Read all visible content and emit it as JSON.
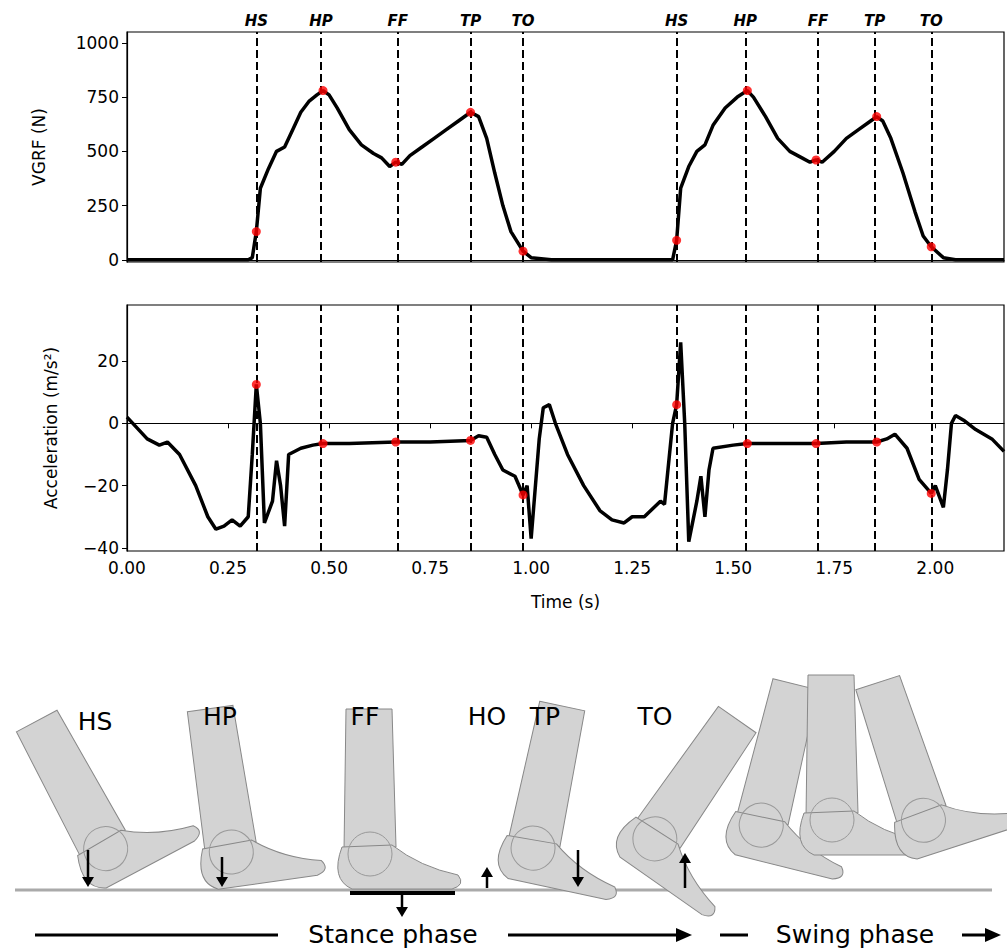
{
  "chart_data": [
    {
      "type": "line",
      "y_label": "VGRF (N)",
      "tick_labels": "y",
      "xlim": [
        0,
        2.17
      ],
      "ylim": [
        -10,
        1050
      ],
      "xticks": [
        {
          "value": 0,
          "label": "0.00"
        },
        {
          "value": 0.25,
          "label": "0.25"
        },
        {
          "value": 0.5,
          "label": "0.50"
        },
        {
          "value": 0.75,
          "label": "0.75"
        },
        {
          "value": 1,
          "label": "1.00"
        },
        {
          "value": 1.25,
          "label": "1.25"
        },
        {
          "value": 1.5,
          "label": "1.50"
        },
        {
          "value": 1.75,
          "label": "1.75"
        },
        {
          "value": 2,
          "label": "2.00"
        }
      ],
      "yticks": [
        0,
        250,
        500,
        750,
        1000
      ],
      "events": [
        {
          "label": "HS",
          "x": 0.32
        },
        {
          "label": "HP",
          "x": 0.485
        },
        {
          "label": "FF",
          "x": 0.665
        },
        {
          "label": "TP",
          "x": 0.85
        },
        {
          "label": "TO",
          "x": 0.98
        },
        {
          "label": "HS",
          "x": 1.36
        },
        {
          "label": "HP",
          "x": 1.535
        },
        {
          "label": "FF",
          "x": 1.705
        },
        {
          "label": "TP",
          "x": 1.855
        },
        {
          "label": "TO",
          "x": 1.99
        }
      ],
      "series": [
        {
          "type": "line",
          "color": "#000000",
          "x": [
            0,
            0.3,
            0.31,
            0.32,
            0.33,
            0.35,
            0.37,
            0.39,
            0.41,
            0.43,
            0.45,
            0.47,
            0.485,
            0.5,
            0.52,
            0.55,
            0.58,
            0.61,
            0.63,
            0.65,
            0.665,
            0.68,
            0.7,
            0.73,
            0.76,
            0.79,
            0.82,
            0.85,
            0.87,
            0.89,
            0.91,
            0.93,
            0.95,
            0.98,
            1.0,
            1.05,
            1.35,
            1.36,
            1.37,
            1.39,
            1.41,
            1.43,
            1.45,
            1.48,
            1.51,
            1.535,
            1.55,
            1.58,
            1.61,
            1.64,
            1.67,
            1.69,
            1.705,
            1.72,
            1.75,
            1.78,
            1.81,
            1.84,
            1.855,
            1.87,
            1.89,
            1.92,
            1.95,
            1.97,
            1.99,
            2.02,
            2.05,
            2.17
          ],
          "values": [
            0,
            0,
            10,
            130,
            330,
            420,
            500,
            520,
            600,
            680,
            730,
            760,
            780,
            760,
            700,
            600,
            530,
            490,
            470,
            430,
            450,
            440,
            480,
            520,
            560,
            600,
            640,
            680,
            660,
            560,
            400,
            250,
            130,
            40,
            10,
            0,
            0,
            90,
            330,
            430,
            500,
            530,
            620,
            700,
            750,
            780,
            750,
            660,
            560,
            500,
            470,
            450,
            460,
            450,
            500,
            560,
            600,
            640,
            660,
            640,
            560,
            400,
            220,
            110,
            60,
            10,
            0,
            0
          ]
        },
        {
          "type": "scatter",
          "color": "#ff0000",
          "x": [
            0.32,
            0.485,
            0.665,
            0.85,
            0.98,
            1.36,
            1.535,
            1.705,
            1.855,
            1.99
          ],
          "values": [
            130,
            780,
            450,
            680,
            40,
            90,
            780,
            460,
            660,
            60
          ]
        }
      ]
    },
    {
      "type": "line",
      "x_label": "Time (s)",
      "y_label": "Acceleration (m/s²)",
      "xlim": [
        0,
        2.17
      ],
      "ylim": [
        -41,
        38
      ],
      "xticks": [
        {
          "value": 0,
          "label": "0.00"
        },
        {
          "value": 0.25,
          "label": "0.25"
        },
        {
          "value": 0.5,
          "label": "0.50"
        },
        {
          "value": 0.75,
          "label": "0.75"
        },
        {
          "value": 1,
          "label": "1.00"
        },
        {
          "value": 1.25,
          "label": "1.25"
        },
        {
          "value": 1.5,
          "label": "1.50"
        },
        {
          "value": 1.75,
          "label": "1.75"
        },
        {
          "value": 2,
          "label": "2.00"
        }
      ],
      "yticks": [
        {
          "value": -40,
          "label": "−40"
        },
        {
          "value": -20,
          "label": "−20"
        },
        0,
        20
      ],
      "events": [
        {
          "x": 0.32
        },
        {
          "x": 0.485
        },
        {
          "x": 0.665
        },
        {
          "x": 0.85
        },
        {
          "x": 0.98
        },
        {
          "x": 1.36
        },
        {
          "x": 1.535
        },
        {
          "x": 1.705
        },
        {
          "x": 1.855
        },
        {
          "x": 1.99
        }
      ],
      "series": [
        {
          "type": "line",
          "color": "#000000",
          "x": [
            0,
            0.05,
            0.08,
            0.1,
            0.13,
            0.17,
            0.2,
            0.22,
            0.24,
            0.26,
            0.28,
            0.3,
            0.31,
            0.32,
            0.33,
            0.34,
            0.36,
            0.37,
            0.38,
            0.39,
            0.4,
            0.43,
            0.46,
            0.485,
            0.55,
            0.665,
            0.75,
            0.85,
            0.87,
            0.89,
            0.91,
            0.93,
            0.96,
            0.98,
            0.99,
            1.0,
            1.02,
            1.03,
            1.045,
            1.06,
            1.09,
            1.13,
            1.17,
            1.2,
            1.23,
            1.25,
            1.28,
            1.32,
            1.33,
            1.35,
            1.36,
            1.37,
            1.38,
            1.39,
            1.41,
            1.42,
            1.43,
            1.44,
            1.45,
            1.5,
            1.535,
            1.6,
            1.705,
            1.78,
            1.855,
            1.88,
            1.9,
            1.93,
            1.96,
            1.99,
            2.0,
            2.02,
            2.03,
            2.04,
            2.05,
            2.07,
            2.1,
            2.14,
            2.17
          ],
          "values": [
            2,
            -5,
            -7,
            -6,
            -10,
            -20,
            -30,
            -34,
            -33,
            -31,
            -33,
            -30,
            -10,
            12.5,
            0,
            -32,
            -25,
            -12,
            -20,
            -33,
            -10,
            -8,
            -7,
            -6.5,
            -6.5,
            -6,
            -6,
            -5.5,
            -4,
            -4.5,
            -10,
            -15,
            -17,
            -23,
            -20,
            -37,
            -5,
            5,
            6,
            0,
            -10,
            -20,
            -28,
            -31,
            -32,
            -30,
            -30,
            -25,
            -26,
            0,
            6,
            26,
            0,
            -38,
            -25,
            -17,
            -30,
            -15,
            -8,
            -7,
            -6.5,
            -6.5,
            -6.5,
            -6,
            -6,
            -5,
            -3.5,
            -8,
            -18,
            -22.5,
            -20,
            -27,
            -15,
            0,
            2.5,
            1,
            -2,
            -5,
            -9
          ]
        },
        {
          "type": "scatter",
          "color": "#ff0000",
          "x": [
            0.32,
            0.485,
            0.665,
            0.85,
            0.98,
            1.36,
            1.535,
            1.705,
            1.855,
            1.99
          ],
          "values": [
            12.5,
            -6.5,
            -6,
            -5.5,
            -23,
            6,
            -6.5,
            -6.5,
            -6,
            -22.5
          ]
        }
      ]
    }
  ],
  "diagram": {
    "gait_events": [
      "HS",
      "HP",
      "FF",
      "HO",
      "TP",
      "TO"
    ],
    "phases": [
      "Stance phase",
      "Swing phase"
    ]
  }
}
